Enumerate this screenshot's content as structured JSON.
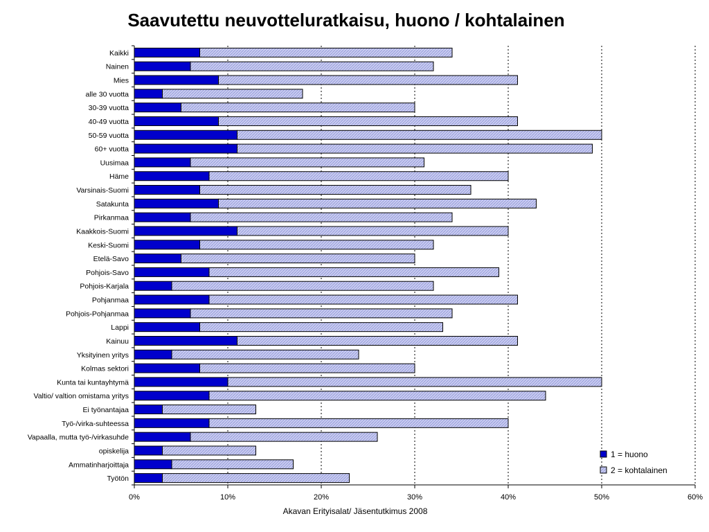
{
  "chart_data": {
    "type": "bar",
    "orientation": "horizontal",
    "stacked": true,
    "title": "Saavutettu neuvotteluratkaisu, huono / kohtalainen",
    "xlabel": "Akavan Erityisalat/ Jäsentutkimus 2008",
    "ylabel": "",
    "xlim": [
      0,
      60
    ],
    "x_ticks": [
      "0%",
      "10%",
      "20%",
      "30%",
      "40%",
      "50%",
      "60%"
    ],
    "grid": "vertical-dotted",
    "legend_position": "bottom-right",
    "categories": [
      "Kaikki",
      "Nainen",
      "Mies",
      "alle 30 vuotta",
      "30-39 vuotta",
      "40-49 vuotta",
      "50-59 vuotta",
      "60+ vuotta",
      "Uusimaa",
      "Häme",
      "Varsinais-Suomi",
      "Satakunta",
      "Pirkanmaa",
      "Kaakkois-Suomi",
      "Keski-Suomi",
      "Etelä-Savo",
      "Pohjois-Savo",
      "Pohjois-Karjala",
      "Pohjanmaa",
      "Pohjois-Pohjanmaa",
      "Lappi",
      "Kainuu",
      "Yksityinen yritys",
      "Kolmas sektori",
      "Kunta tai kuntayhtymä",
      "Valtio/ valtion omistama yritys",
      "Ei työnantajaa",
      "Työ-/virka-suhteessa",
      "Vapaalla, mutta työ-/virkasuhde",
      "opiskelija",
      "Ammatinharjoittaja",
      "Työtön"
    ],
    "series": [
      {
        "name": "1 = huono",
        "color": "#0000CC",
        "values": [
          7,
          6,
          9,
          3,
          5,
          9,
          11,
          11,
          6,
          8,
          7,
          9,
          6,
          11,
          7,
          5,
          8,
          4,
          8,
          6,
          7,
          11,
          4,
          7,
          10,
          8,
          3,
          8,
          6,
          3,
          4,
          3
        ]
      },
      {
        "name": "2 = kohtalainen",
        "color": "#C8CCF0",
        "values": [
          27,
          26,
          32,
          15,
          25,
          32,
          39,
          38,
          25,
          32,
          29,
          34,
          28,
          29,
          25,
          25,
          31,
          28,
          33,
          28,
          26,
          30,
          20,
          23,
          40,
          36,
          10,
          32,
          20,
          10,
          13,
          20
        ]
      }
    ]
  }
}
